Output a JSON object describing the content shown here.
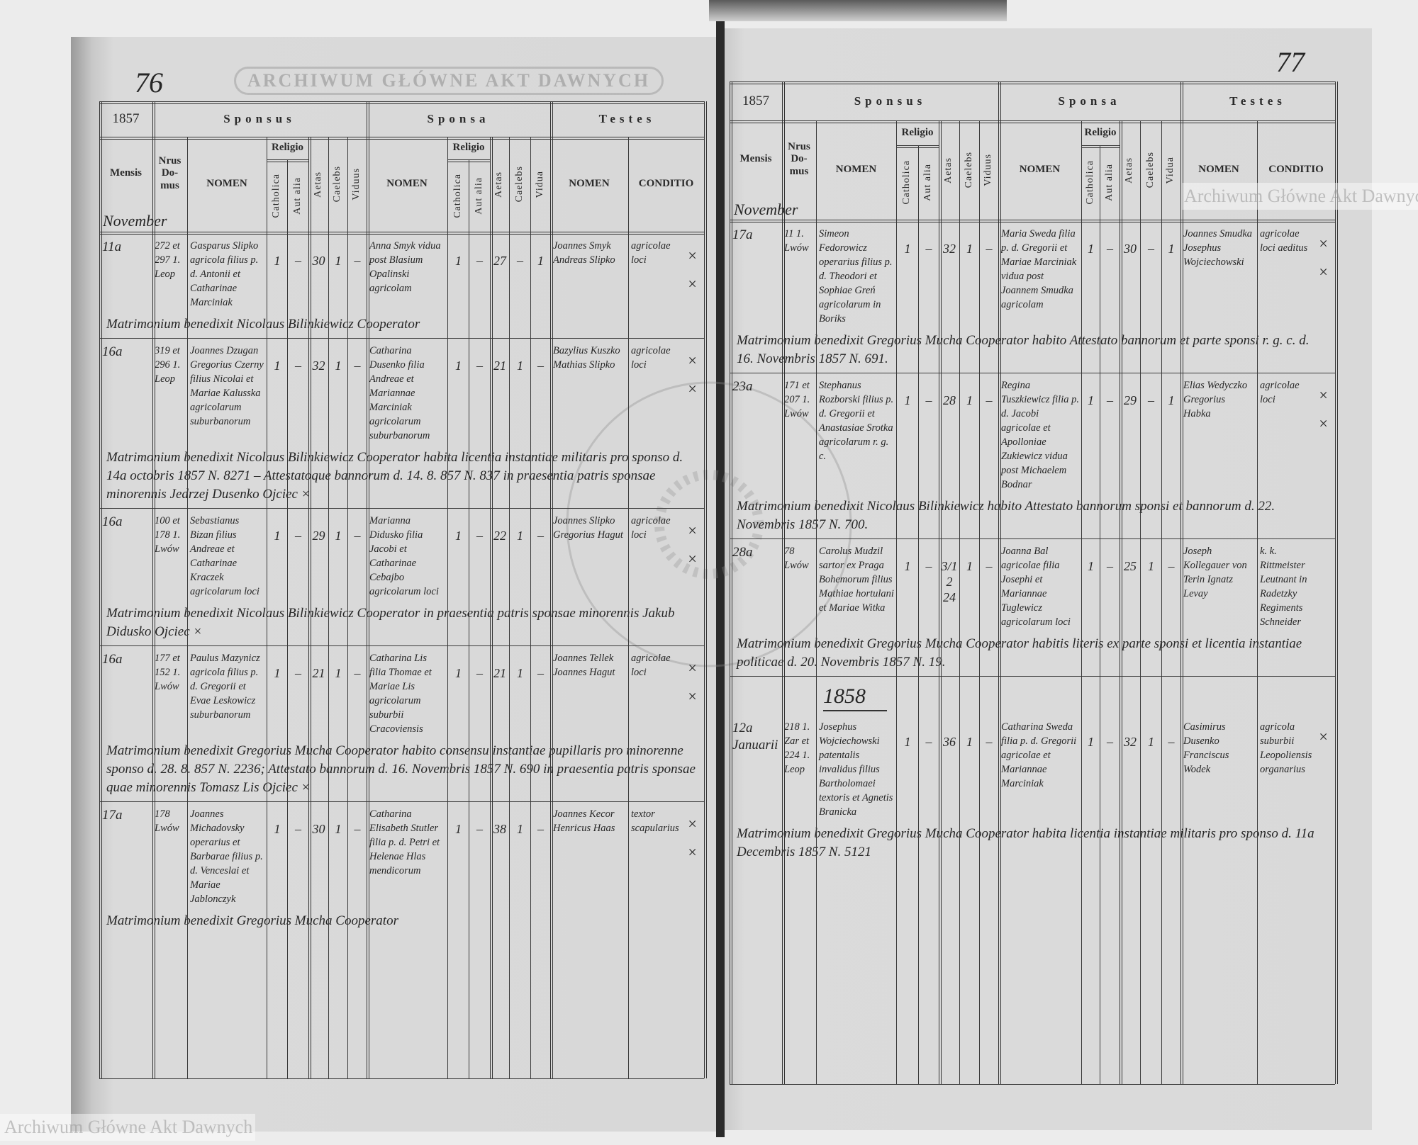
{
  "watermark": "Archiwum Główne Akt Dawnych",
  "stamp_text": "ARCHIWUM GŁÓWNE AKT DAWNYCH",
  "header_labels": {
    "sponsus": "Sponsus",
    "sponsa": "Sponsa",
    "testes": "Testes",
    "mensis": "Mensis",
    "nrus_domus": "Nrus Do- mus",
    "nomen": "NOMEN",
    "religio": "Religio",
    "catholica": "Catholica",
    "aut_alia": "Aut alia",
    "aetas": "Aetas",
    "caelebs": "Caelebs",
    "viduus": "Viduus",
    "vidua": "Vidua",
    "conditio": "CONDITIO"
  },
  "pages": [
    {
      "page_number": "76",
      "year": "1857",
      "month": "November",
      "entries": [
        {
          "date": "11a",
          "house": "272 et 297 1. Leop",
          "groom": {
            "name": "Gasparus Slipko agricola filius p. d. Antonii et Catharinae Marciniak",
            "catholica": "1",
            "aut_alia": "–",
            "aetas": "30",
            "caelebs": "1",
            "viduus": "–"
          },
          "bride": {
            "name": "Anna Smyk vidua post Blasium Opalinski agricolam",
            "catholica": "1",
            "aut_alia": "–",
            "aetas": "27",
            "caelebs": "–",
            "vidua": "1"
          },
          "witnesses": "Joannes Smyk Andreas Slipko",
          "conditio": "agricolae loci",
          "marks": "× ×",
          "note": "Matrimonium benedixit Nicolaus Bilinkiewicz Cooperator"
        },
        {
          "date": "16a",
          "house": "319 et 296 1. Leop",
          "groom": {
            "name": "Joannes Dzugan Gregorius Czerny filius Nicolai et Mariae Kalusska agricolarum suburbanorum",
            "catholica": "1",
            "aut_alia": "–",
            "aetas": "32",
            "caelebs": "1",
            "viduus": "–"
          },
          "bride": {
            "name": "Catharina Dusenko filia Andreae et Mariannae Marciniak agricolarum suburbanorum",
            "catholica": "1",
            "aut_alia": "–",
            "aetas": "21",
            "caelebs": "1",
            "vidua": "–"
          },
          "witnesses": "Bazylius Kuszko Mathias Slipko",
          "conditio": "agricolae loci",
          "marks": "× ×",
          "note": "Matrimonium benedixit Nicolaus Bilinkiewicz Cooperator habita licentia instantiae militaris pro sponso d. 14a octobris 1857 N. 8271 – Attestatoque bannorum d. 14. 8. 857 N. 837 in praesentia patris sponsae minorennis Jedrzej Dusenko Ojciec ×"
        },
        {
          "date": "16a",
          "house": "100 et 178 1. Lwów",
          "groom": {
            "name": "Sebastianus Bizan filius Andreae et Catharinae Kraczek agricolarum loci",
            "catholica": "1",
            "aut_alia": "–",
            "aetas": "29",
            "caelebs": "1",
            "viduus": "–"
          },
          "bride": {
            "name": "Marianna Didusko filia Jacobi et Catharinae Cebajbo agricolarum loci",
            "catholica": "1",
            "aut_alia": "–",
            "aetas": "22",
            "caelebs": "1",
            "vidua": "–"
          },
          "witnesses": "Joannes Slipko Gregorius Hagut",
          "conditio": "agricolae loci",
          "marks": "× ×",
          "note": "Matrimonium benedixit Nicolaus Bilinkiewicz Cooperator in praesentia patris sponsae minorennis Jakub Didusko Ojciec ×"
        },
        {
          "date": "16a",
          "house": "177 et 152 1. Lwów",
          "groom": {
            "name": "Paulus Mazynicz agricola filius p. d. Gregorii et Evae Leskowicz suburbanorum",
            "catholica": "1",
            "aut_alia": "–",
            "aetas": "21",
            "caelebs": "1",
            "viduus": "–"
          },
          "bride": {
            "name": "Catharina Lis filia Thomae et Mariae Lis agricolarum suburbii Cracoviensis",
            "catholica": "1",
            "aut_alia": "–",
            "aetas": "21",
            "caelebs": "1",
            "vidua": "–"
          },
          "witnesses": "Joannes Tellek Joannes Hagut",
          "conditio": "agricolae loci",
          "marks": "× ×",
          "note": "Matrimonium benedixit Gregorius Mucha Cooperator habito consensu instantiae pupillaris pro minorenne sponso d. 28. 8. 857 N. 2236; Attestato bannorum d. 16. Novembris 1857 N. 690 in praesentia patris sponsae quae minorennis Tomasz Lis Ojciec ×"
        },
        {
          "date": "17a",
          "house": "178 Lwów",
          "groom": {
            "name": "Joannes Michadovsky operarius et Barbarae filius p. d. Venceslai et Mariae Jablonczyk",
            "catholica": "1",
            "aut_alia": "–",
            "aetas": "30",
            "caelebs": "1",
            "viduus": "–"
          },
          "bride": {
            "name": "Catharina Elisabeth Stutler filia p. d. Petri et Helenae Hlas mendicorum",
            "catholica": "1",
            "aut_alia": "–",
            "aetas": "38",
            "caelebs": "1",
            "vidua": "–"
          },
          "witnesses": "Joannes Kecor Henricus Haas",
          "conditio": "textor scapularius",
          "marks": "× ×",
          "note": "Matrimonium benedixit Gregorius Mucha Cooperator"
        }
      ]
    },
    {
      "page_number": "77",
      "year": "1857",
      "month": "November",
      "year_marker": "1858",
      "entries": [
        {
          "date": "17a",
          "house": "11 1. Lwów",
          "groom": {
            "name": "Simeon Fedorowicz operarius filius p. d. Theodori et Sophiae Greń agricolarum in Boriks",
            "catholica": "1",
            "aut_alia": "–",
            "aetas": "32",
            "caelebs": "1",
            "viduus": "–"
          },
          "bride": {
            "name": "Maria Sweda filia p. d. Gregorii et Mariae Marciniak vidua post Joannem Smudka agricolam",
            "catholica": "1",
            "aut_alia": "–",
            "aetas": "30",
            "caelebs": "–",
            "vidua": "1"
          },
          "witnesses": "Joannes Smudka Josephus Wojciechowski",
          "conditio": "agricolae loci aeditus",
          "marks": "× ×",
          "note": "Matrimonium benedixit Gregorius Mucha Cooperator habito Attestato bannorum et parte sponsi r. g. c. d. 16. Novembris 1857 N. 691."
        },
        {
          "date": "23a",
          "house": "171 et 207 1. Lwów",
          "groom": {
            "name": "Stephanus Rozborski filius p. d. Gregorii et Anastasiae Srotka agricolarum r. g. c.",
            "catholica": "1",
            "aut_alia": "–",
            "aetas": "28",
            "caelebs": "1",
            "viduus": "–"
          },
          "bride": {
            "name": "Regina Tuszkiewicz filia p. d. Jacobi agricolae et Apolloniae Zukiewicz vidua post Michaelem Bodnar",
            "catholica": "1",
            "aut_alia": "–",
            "aetas": "29",
            "caelebs": "–",
            "vidua": "1"
          },
          "witnesses": "Elias Wedyczko Gregorius Habka",
          "conditio": "agricolae loci",
          "marks": "× ×",
          "note": "Matrimonium benedixit Nicolaus Bilinkiewicz habito Attestato bannorum sponsi et bannorum d. 22. Novembris 1857 N. 700."
        },
        {
          "date": "28a",
          "house": "78 Lwów",
          "groom": {
            "name": "Carolus Mudzil sartor ex Praga Bohemorum filius Mathiae hortulani et Mariae Witka",
            "catholica": "1",
            "aut_alia": "–",
            "aetas": "3/12 24",
            "caelebs": "1",
            "viduus": "–"
          },
          "bride": {
            "name": "Joanna Bal agricolae filia Josephi et Mariannae Tuglewicz agricolarum loci",
            "catholica": "1",
            "aut_alia": "–",
            "aetas": "25",
            "caelebs": "1",
            "vidua": "–"
          },
          "witnesses": "Joseph Kollegauer von Terin Ignatz Levay",
          "conditio": "k. k. Rittmeister Leutnant in Radetzky Regiments Schneider",
          "marks": "",
          "note": "Matrimonium benedixit Gregorius Mucha Cooperator habitis literis ex parte sponsi et licentia instantiae politicae d. 20. Novembris 1857 N. 19."
        },
        {
          "date": "12a Januarii",
          "house": "218 1. Zar et 224 1. Leop",
          "groom": {
            "name": "Josephus Wojciechowski patentalis invalidus filius Bartholomaei textoris et Agnetis Branicka",
            "catholica": "1",
            "aut_alia": "–",
            "aetas": "36",
            "caelebs": "1",
            "viduus": "–"
          },
          "bride": {
            "name": "Catharina Sweda filia p. d. Gregorii agricolae et Mariannae Marciniak",
            "catholica": "1",
            "aut_alia": "–",
            "aetas": "32",
            "caelebs": "1",
            "vidua": "–"
          },
          "witnesses": "Casimirus Dusenko Franciscus Wodek",
          "conditio": "agricola suburbii Leopoliensis organarius",
          "marks": "×",
          "note": "Matrimonium benedixit Gregorius Mucha Cooperator habita licentia instantiae militaris pro sponso d. 11a Decembris 1857 N. 5121"
        }
      ]
    }
  ]
}
